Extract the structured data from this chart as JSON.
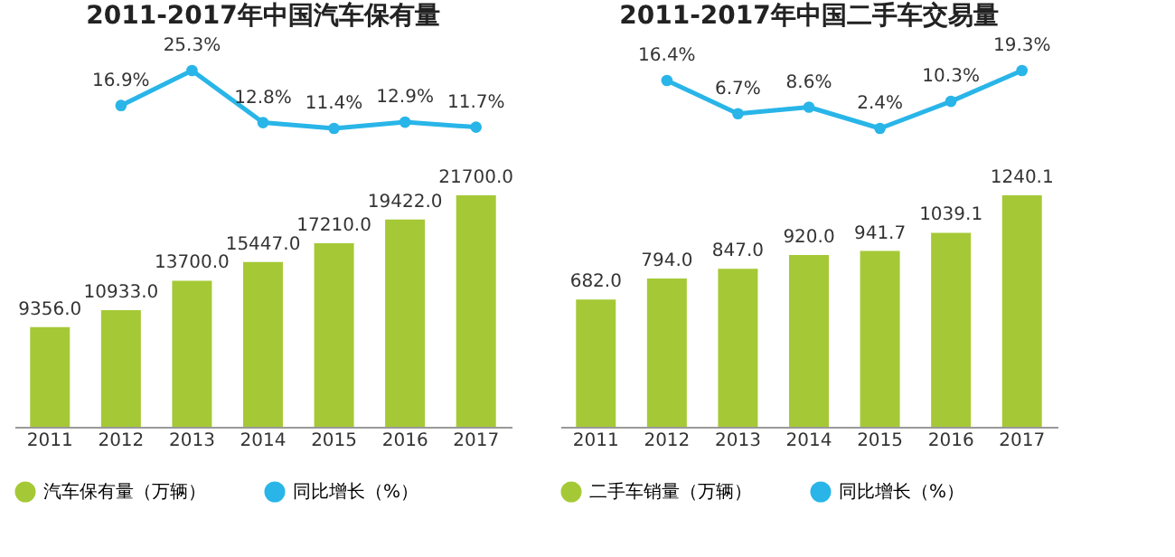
{
  "chart_data": [
    {
      "type": "line",
      "title": "2011-2017年中国汽车保有量",
      "categories": [
        "2011",
        "2012",
        "2013",
        "2014",
        "2015",
        "2016",
        "2017"
      ],
      "tick_labels": false,
      "grid": false,
      "legend": "bottom",
      "marker": "circle",
      "series": [
        {
          "name": "同比增长（%）",
          "color": "#29b5e8",
          "values": [
            null,
            16.9,
            25.3,
            12.8,
            11.4,
            12.9,
            11.7
          ],
          "value_labels": [
            null,
            "16.9%",
            "25.3%",
            "12.8%",
            "11.4%",
            "12.9%",
            "11.7%"
          ]
        }
      ]
    },
    {
      "type": "bar",
      "categories": [
        "2011",
        "2012",
        "2013",
        "2014",
        "2015",
        "2016",
        "2017"
      ],
      "tick_labels": "x",
      "grid": false,
      "legend": "bottom",
      "series": [
        {
          "name": "汽车保有量（万辆）",
          "color": "#a5c936",
          "values": [
            9356.0,
            10933.0,
            13700.0,
            15447.0,
            17210.0,
            19422.0,
            21700.0
          ],
          "value_labels": [
            "9356.0",
            "10933.0",
            "13700.0",
            "15447.0",
            "17210.0",
            "19422.0",
            "21700.0"
          ]
        }
      ]
    },
    {
      "type": "line",
      "title": "2011-2017年中国二手车交易量",
      "categories": [
        "2011",
        "2012",
        "2013",
        "2014",
        "2015",
        "2016",
        "2017"
      ],
      "tick_labels": false,
      "grid": false,
      "legend": "bottom",
      "marker": "circle",
      "series": [
        {
          "name": "同比增长（%）",
          "color": "#29b5e8",
          "values": [
            null,
            16.4,
            6.7,
            8.6,
            2.4,
            10.3,
            19.3
          ],
          "value_labels": [
            null,
            "16.4%",
            "6.7%",
            "8.6%",
            "2.4%",
            "10.3%",
            "19.3%"
          ]
        }
      ]
    },
    {
      "type": "bar",
      "categories": [
        "2011",
        "2012",
        "2013",
        "2014",
        "2015",
        "2016",
        "2017"
      ],
      "tick_labels": "x",
      "grid": false,
      "legend": "bottom",
      "series": [
        {
          "name": "二手车销量（万辆）",
          "color": "#a5c936",
          "values": [
            682.0,
            794.0,
            847.0,
            920.0,
            941.7,
            1039.1,
            1240.1
          ],
          "value_labels": [
            "682.0",
            "794.0",
            "847.0",
            "920.0",
            "941.7",
            "1039.1",
            "1240.1"
          ]
        }
      ]
    }
  ]
}
